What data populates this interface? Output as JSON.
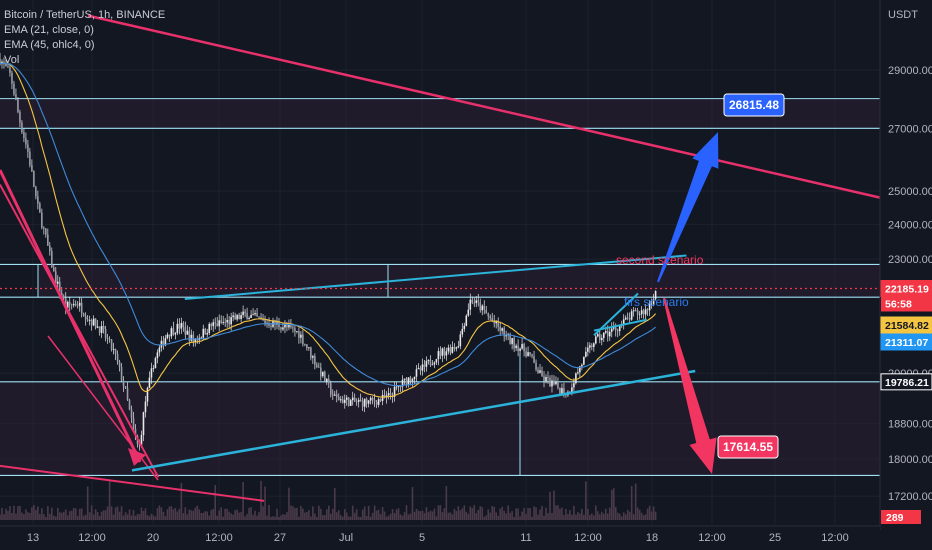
{
  "header": {
    "symbol_line": "Bitcoin / TetherUS, 1h, BINANCE",
    "ema1": "EMA (21, close, 0)",
    "ema2": "EMA (45, ohlc4, 0)",
    "vol": "Vol"
  },
  "colors": {
    "background": "#131722",
    "grid": "#1e222d",
    "candle": "#e8e8e8",
    "ema_fast": "#f5c542",
    "ema_slow": "#3f8ad8",
    "zone_line": "#9fe0f5",
    "zone_fill": "#2a1f33",
    "channel": "#2bb3d9",
    "trend_red": "#e8316b",
    "bull_arrow": "#2962ff",
    "bear_arrow": "#f23661",
    "last_price": "#f23645"
  },
  "chart_data": {
    "type": "candlestick",
    "symbol": "Bitcoin / TetherUS",
    "timeframe": "1h",
    "exchange": "BINANCE",
    "y_axis_unit": "USDT",
    "y_axis_scale": "log",
    "y_ticks": [
      "29000.00",
      "27000.00",
      "25000.00",
      "24000.00",
      "23000.00",
      "20000.00",
      "18800.00",
      "18000.00",
      "17200.00"
    ],
    "x_ticks": [
      "13",
      "12:00",
      "20",
      "12:00",
      "27",
      "Jul",
      "5",
      "11",
      "12:00",
      "18",
      "12:00",
      "25",
      "12:00"
    ],
    "price_path": [
      [
        0,
        29400
      ],
      [
        0.012,
        28800
      ],
      [
        0.022,
        27300
      ],
      [
        0.032,
        26200
      ],
      [
        0.042,
        24600
      ],
      [
        0.052,
        23600
      ],
      [
        0.062,
        22500
      ],
      [
        0.075,
        21700
      ],
      [
        0.088,
        21800
      ],
      [
        0.1,
        21400
      ],
      [
        0.115,
        21100
      ],
      [
        0.13,
        20500
      ],
      [
        0.142,
        19600
      ],
      [
        0.152,
        18600
      ],
      [
        0.158,
        18200
      ],
      [
        0.165,
        19300
      ],
      [
        0.175,
        20300
      ],
      [
        0.19,
        21000
      ],
      [
        0.205,
        21200
      ],
      [
        0.22,
        20800
      ],
      [
        0.24,
        21200
      ],
      [
        0.26,
        21300
      ],
      [
        0.28,
        21500
      ],
      [
        0.3,
        21300
      ],
      [
        0.32,
        21200
      ],
      [
        0.34,
        21000
      ],
      [
        0.36,
        20200
      ],
      [
        0.38,
        19400
      ],
      [
        0.4,
        19300
      ],
      [
        0.42,
        19300
      ],
      [
        0.44,
        19400
      ],
      [
        0.46,
        19800
      ],
      [
        0.48,
        20100
      ],
      [
        0.5,
        20500
      ],
      [
        0.52,
        20700
      ],
      [
        0.535,
        21900
      ],
      [
        0.545,
        21700
      ],
      [
        0.56,
        21300
      ],
      [
        0.58,
        20800
      ],
      [
        0.6,
        20500
      ],
      [
        0.615,
        19900
      ],
      [
        0.63,
        19700
      ],
      [
        0.645,
        19500
      ],
      [
        0.66,
        20200
      ],
      [
        0.675,
        20800
      ],
      [
        0.69,
        21000
      ],
      [
        0.705,
        21200
      ],
      [
        0.72,
        21500
      ],
      [
        0.735,
        21600
      ],
      [
        0.745,
        22100
      ]
    ],
    "horizontal_levels": [
      28000,
      27000,
      22850,
      21950,
      19786.21,
      17640
    ],
    "channel_top": [
      [
        0.21,
        21900
      ],
      [
        0.78,
        23100
      ]
    ],
    "channel_bottom": [
      [
        0.15,
        17750
      ],
      [
        0.79,
        20050
      ]
    ],
    "wedge": [
      [
        0.675,
        20950
      ],
      [
        0.725,
        22050
      ],
      [
        0.735,
        21050
      ]
    ],
    "trend_lines": [
      [
        [
          0.1,
          31000
        ],
        [
          1.0,
          24800
        ]
      ],
      [
        [
          0.0,
          17850
        ],
        [
          0.3,
          17100
        ]
      ],
      [
        [
          0.0,
          25200
        ],
        [
          0.18,
          17600
        ]
      ]
    ],
    "scenario_up": {
      "target": 26815.48,
      "label": "26815.48",
      "from": [
        0.748,
        22200
      ],
      "to": [
        0.81,
        26700
      ]
    },
    "scenario_down": {
      "target": 17614.55,
      "label": "17614.55",
      "from": [
        0.755,
        21900
      ],
      "to": [
        0.81,
        17600
      ]
    },
    "annotations": {
      "second": "second scenario",
      "first": "firs scenario"
    },
    "price_tags": [
      {
        "value": 22185.19,
        "text": "22185.19",
        "bg": "#f23645",
        "fg": "#ffffff"
      },
      {
        "value": 21584.82,
        "text": "21584.82",
        "bg": "#f5c542",
        "fg": "#131722"
      },
      {
        "value": 21311.07,
        "text": "21311.07",
        "bg": "#2196f3",
        "fg": "#ffffff"
      },
      {
        "value": 19786.21,
        "text": "19786.21",
        "bg": "#131722",
        "fg": "#ffffff",
        "border": "#ffffff"
      }
    ],
    "countdown": "56:58",
    "partial_tag": "289"
  }
}
